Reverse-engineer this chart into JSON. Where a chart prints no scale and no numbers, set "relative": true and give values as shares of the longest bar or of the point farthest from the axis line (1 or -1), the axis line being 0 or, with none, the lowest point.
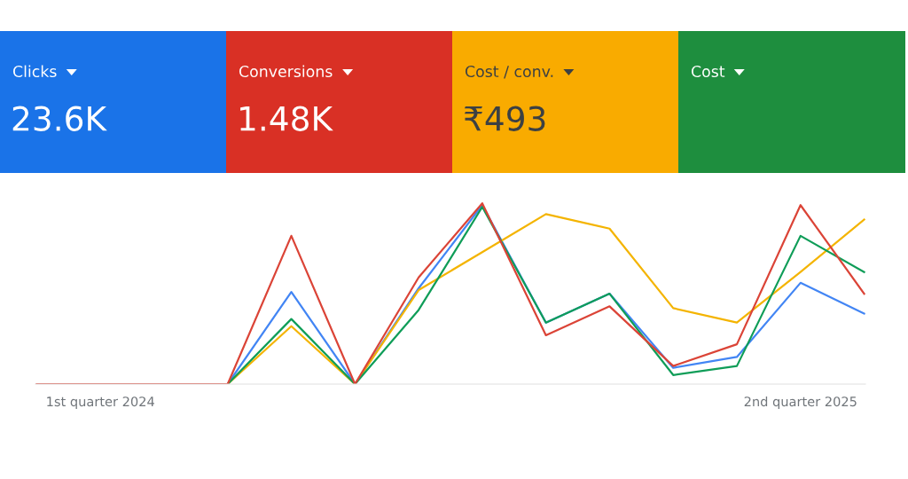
{
  "chart_data": [
    {
      "type": "other",
      "categories": [
        "Clicks",
        "Conversions",
        "Cost / conv.",
        "Cost"
      ],
      "value_labels": [
        "23.6K",
        "1.48K",
        "₹493",
        null
      ],
      "colors": [
        "#1a73e8",
        "#d93025",
        "#f9ab00",
        "#1e8e3e"
      ]
    },
    {
      "type": "line",
      "relative": true,
      "categories": [
        null,
        "1st quarter 2024",
        null,
        null,
        null,
        null,
        null,
        null,
        null,
        null,
        null,
        null,
        "2nd quarter 2025",
        null
      ],
      "series": [
        {
          "color": "#4285f4",
          "values": [
            null,
            null,
            null,
            0,
            0.51,
            0,
            0.53,
            0.99,
            0.34,
            0.5,
            0.09,
            0.15,
            0.56,
            0.39
          ]
        },
        {
          "color": "#f4b400",
          "values": [
            null,
            null,
            null,
            0,
            0.32,
            0,
            0.52,
            0.73,
            0.94,
            0.86,
            0.42,
            0.34,
            0.62,
            0.91
          ]
        },
        {
          "color": "#0f9d58",
          "values": [
            null,
            null,
            null,
            0,
            0.36,
            0,
            0.41,
            0.98,
            0.34,
            0.5,
            0.05,
            0.1,
            0.82,
            0.62
          ]
        },
        {
          "color": "#db4437",
          "values": [
            0,
            0,
            0,
            0,
            0.82,
            0,
            0.59,
            1.0,
            0.27,
            0.43,
            0.1,
            0.22,
            0.99,
            0.5
          ]
        }
      ],
      "marker": "none",
      "line_style": "solid"
    }
  ]
}
